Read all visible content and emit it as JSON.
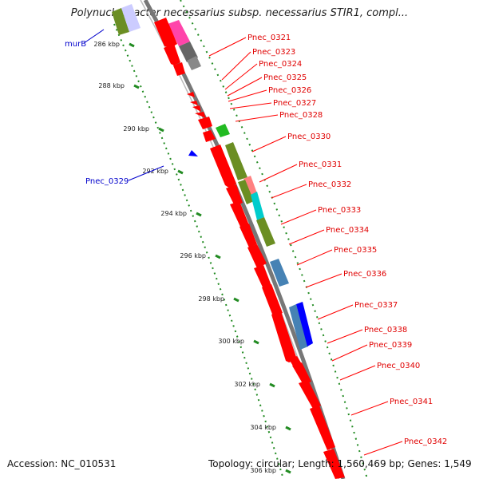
{
  "title": "Polynucleobacter necessarius subsp. necessarius STIR1, compl...",
  "footer": {
    "accession": "Accession: NC_010531",
    "summary": "Topology: circular; Length: 1,560,469 bp; Genes: 1,549"
  },
  "ticks": [
    "286 kbp",
    "288 kbp",
    "290 kbp",
    "292 kbp",
    "294 kbp",
    "296 kbp",
    "298 kbp",
    "300 kbp",
    "302 kbp",
    "304 kbp",
    "306 kbp"
  ],
  "plus_labels": [
    "Pnec_0321",
    "Pnec_0323",
    "Pnec_0324",
    "Pnec_0325",
    "Pnec_0326",
    "Pnec_0327",
    "Pnec_0328",
    "Pnec_0330",
    "Pnec_0331",
    "Pnec_0332",
    "Pnec_0333",
    "Pnec_0334",
    "Pnec_0335",
    "Pnec_0336",
    "Pnec_0337",
    "Pnec_0338",
    "Pnec_0339",
    "Pnec_0340",
    "Pnec_0341",
    "Pnec_0342"
  ],
  "minus_labels": [
    "murB",
    "Pnec_0329"
  ],
  "colors": {
    "cds": "#ff0000",
    "minus_cds": "#0000ff",
    "olive": "#6b8e23",
    "magenta": "#ff00aa",
    "gray": "#666666",
    "green": "#22bb22",
    "steelblue": "#4682b4",
    "cyan": "#00cccc",
    "pink": "#ff8080",
    "backbone": "#888888",
    "tick": "#228b22"
  }
}
